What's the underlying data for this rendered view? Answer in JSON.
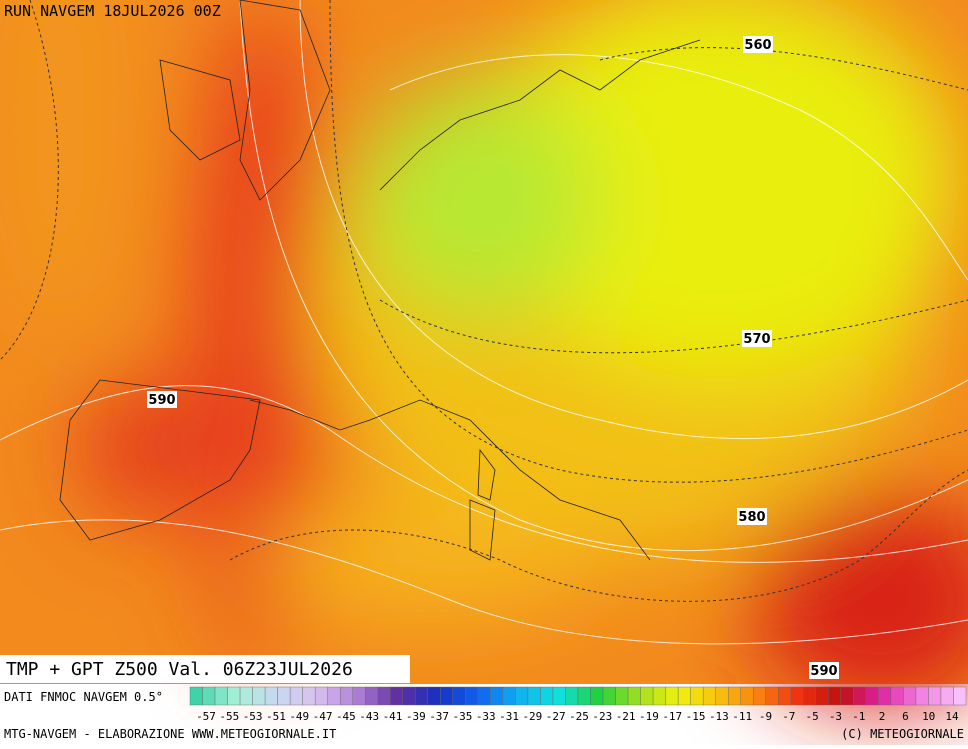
{
  "header": {
    "run": "RUN NAVGEM 18JUL2026 00Z"
  },
  "contour_labels": [
    "560",
    "570",
    "580",
    "590",
    "590"
  ],
  "footer": {
    "title": "TMP + GPT Z500 Val. 06Z23JUL2026",
    "source": "DATI FNMOC NAVGEM 0.5°",
    "credit": "MTG-NAVGEM - ELABORAZIONE WWW.METEOGIORNALE.IT",
    "copyright": "(C) METEOGIORNALE"
  },
  "colorbar": {
    "labels": [
      "-57",
      "-55",
      "-53",
      "-51",
      "-49",
      "-47",
      "-45",
      "-43",
      "-41",
      "-39",
      "-37",
      "-35",
      "-33",
      "-31",
      "-29",
      "-27",
      "-25",
      "-23",
      "-21",
      "-19",
      "-17",
      "-15",
      "-13",
      "-11",
      "-9",
      "-7",
      "-5",
      "-3",
      "-1",
      "2",
      "6",
      "10",
      "14"
    ]
  }
}
